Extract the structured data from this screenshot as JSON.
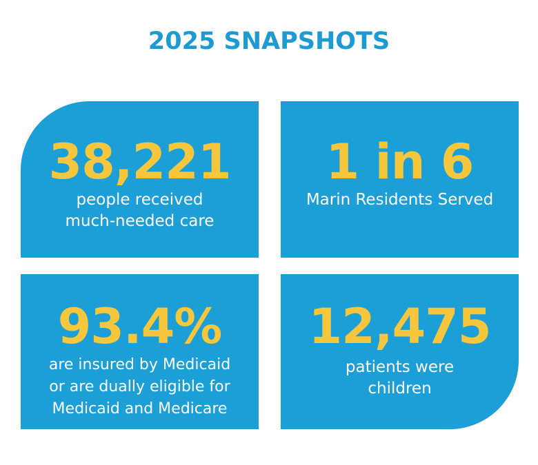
{
  "title": "2025 SNAPSHOTS",
  "colors": {
    "title": "#1e9ad3",
    "card_background": "#1c9ed6",
    "stat_text": "#f6c63d",
    "description_text": "#ffffff"
  },
  "cards": [
    {
      "stat": "38,221",
      "lines": [
        "people received",
        "much-needed care"
      ]
    },
    {
      "stat": "1 in 6",
      "lines": [
        "Marin Residents Served"
      ]
    },
    {
      "stat": "93.4%",
      "lines": [
        "are insured by Medicaid",
        "or are dually eligible for",
        "Medicaid and Medicare"
      ]
    },
    {
      "stat": "12,475",
      "lines": [
        "patients were",
        "children"
      ]
    }
  ]
}
